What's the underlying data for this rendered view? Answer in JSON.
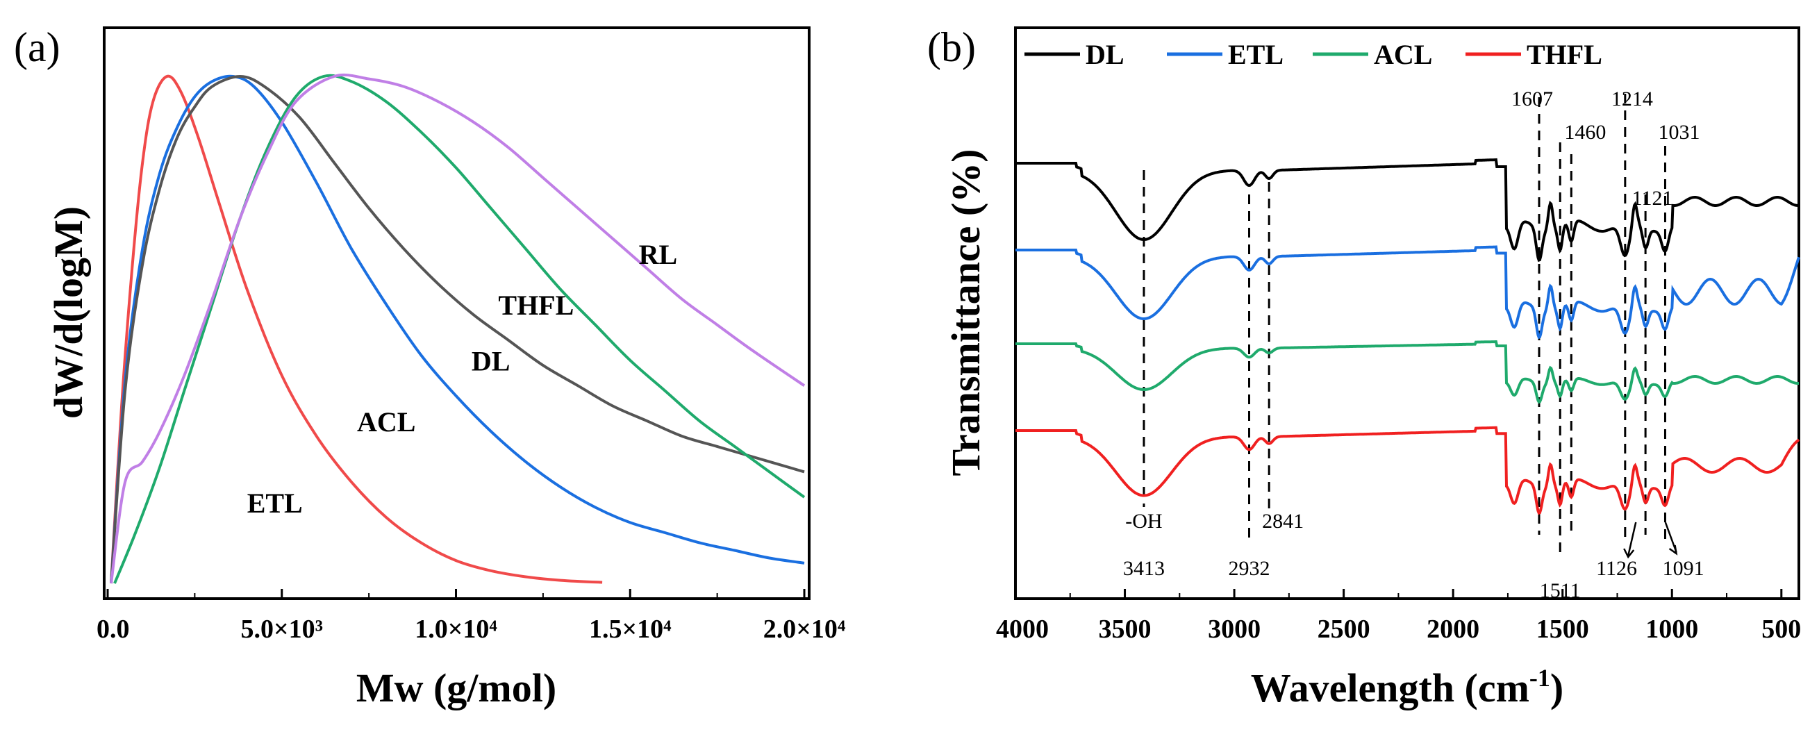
{
  "chart_data": [
    {
      "panel": "(a)",
      "type": "line",
      "xlabel": "Mw (g/mol)",
      "ylabel": "dW/d(logM)",
      "xlim": [
        0,
        20000
      ],
      "ylim": [
        0,
        1.05
      ],
      "x_ticks": [
        {
          "value": 0,
          "label": "0.0"
        },
        {
          "value": 5000,
          "label": "5.0×10³"
        },
        {
          "value": 10000,
          "label": "1.0×10⁴"
        },
        {
          "value": 15000,
          "label": "1.5×10⁴"
        },
        {
          "value": 20000,
          "label": "2.0×10⁴"
        }
      ],
      "series": [
        {
          "name": "ETL",
          "color": "#f04a4a",
          "peak_x": 1700,
          "start_x": 100,
          "end_x": 14200,
          "x": [
            100,
            400,
            700,
            1000,
            1300,
            1700,
            2100,
            2600,
            3200,
            4000,
            5000,
            6000,
            7000,
            8000,
            9000,
            10000,
            11000,
            12000,
            13000,
            14200
          ],
          "y": [
            0.0,
            0.35,
            0.62,
            0.83,
            0.95,
            1.0,
            0.97,
            0.88,
            0.75,
            0.58,
            0.41,
            0.29,
            0.2,
            0.13,
            0.08,
            0.045,
            0.025,
            0.013,
            0.006,
            0.002
          ]
        },
        {
          "name": "ACL",
          "color": "#1a6fe0",
          "peak_x": 3600,
          "start_x": 100,
          "end_x": 20000,
          "x": [
            100,
            500,
            1000,
            1500,
            2000,
            2500,
            3000,
            3600,
            4200,
            5000,
            6000,
            7000,
            8000,
            9000,
            10000,
            11000,
            12000,
            13000,
            14000,
            15000,
            16000,
            17000,
            18000,
            19000,
            20000
          ],
          "y": [
            0.0,
            0.4,
            0.66,
            0.81,
            0.9,
            0.96,
            0.99,
            1.0,
            0.98,
            0.91,
            0.79,
            0.66,
            0.55,
            0.45,
            0.37,
            0.3,
            0.24,
            0.19,
            0.15,
            0.12,
            0.1,
            0.08,
            0.065,
            0.05,
            0.04
          ]
        },
        {
          "name": "DL",
          "color": "#555555",
          "peak_x": 3800,
          "start_x": 100,
          "end_x": 20000,
          "x": [
            100,
            500,
            1000,
            1500,
            2000,
            2500,
            3000,
            3800,
            4500,
            5500,
            6500,
            7500,
            8500,
            9500,
            10500,
            11500,
            12500,
            13500,
            14500,
            15500,
            16500,
            17500,
            18500,
            20000
          ],
          "y": [
            0.0,
            0.38,
            0.63,
            0.78,
            0.88,
            0.94,
            0.98,
            1.0,
            0.98,
            0.92,
            0.83,
            0.74,
            0.66,
            0.59,
            0.53,
            0.48,
            0.43,
            0.39,
            0.35,
            0.32,
            0.29,
            0.27,
            0.25,
            0.22
          ]
        },
        {
          "name": "THFL",
          "color": "#1faa6c",
          "peak_x": 6200,
          "start_x": 200,
          "end_x": 20000,
          "x": [
            200,
            800,
            1500,
            2200,
            3000,
            3800,
            4600,
            5400,
            6200,
            7000,
            8000,
            9000,
            10000,
            11000,
            12000,
            13000,
            14000,
            15000,
            16000,
            17000,
            18000,
            19000,
            20000
          ],
          "y": [
            0.0,
            0.1,
            0.23,
            0.38,
            0.55,
            0.72,
            0.86,
            0.96,
            1.0,
            0.99,
            0.95,
            0.89,
            0.82,
            0.74,
            0.66,
            0.58,
            0.51,
            0.44,
            0.38,
            0.32,
            0.27,
            0.22,
            0.17
          ]
        },
        {
          "name": "RL",
          "color": "#c07fe6",
          "peak_x": 6500,
          "start_x": 100,
          "end_x": 20000,
          "x": [
            100,
            500,
            1000,
            1500,
            2200,
            3000,
            3800,
            4600,
            5400,
            6500,
            7500,
            8500,
            9500,
            10500,
            11500,
            12500,
            13500,
            14500,
            15500,
            16500,
            17500,
            18500,
            20000
          ],
          "y": [
            0.0,
            0.2,
            0.24,
            0.3,
            0.41,
            0.56,
            0.72,
            0.85,
            0.95,
            1.0,
            0.995,
            0.98,
            0.95,
            0.91,
            0.86,
            0.8,
            0.74,
            0.68,
            0.62,
            0.56,
            0.51,
            0.46,
            0.39
          ]
        }
      ],
      "annotations": [
        {
          "text": "ETL",
          "x": 4800,
          "y": 0.14
        },
        {
          "text": "ACL",
          "x": 8000,
          "y": 0.3
        },
        {
          "text": "DL",
          "x": 11000,
          "y": 0.42
        },
        {
          "text": "THFL",
          "x": 12300,
          "y": 0.53
        },
        {
          "text": "RL",
          "x": 15800,
          "y": 0.63
        }
      ]
    },
    {
      "panel": "(b)",
      "type": "line",
      "xlabel": "Wavelength (cm⁻¹)",
      "xlabel_main": "Wavelength (cm",
      "xlabel_sup": "-1",
      "xlabel_end": ")",
      "ylabel": "Transmittance (%)",
      "xlim": [
        4000,
        400
      ],
      "x_ticks": [
        {
          "value": 4000,
          "label": "4000"
        },
        {
          "value": 3500,
          "label": "3500"
        },
        {
          "value": 3000,
          "label": "3000"
        },
        {
          "value": 2500,
          "label": "2500"
        },
        {
          "value": 2000,
          "label": "2000"
        },
        {
          "value": 1500,
          "label": "1500"
        },
        {
          "value": 1000,
          "label": "1000"
        },
        {
          "value": 500,
          "label": "500"
        }
      ],
      "legend": [
        {
          "name": "DL",
          "color": "#000000"
        },
        {
          "name": "ETL",
          "color": "#1a6fe0"
        },
        {
          "name": "ACL",
          "color": "#1faa6c"
        },
        {
          "name": "THFL",
          "color": "#f02020"
        }
      ],
      "series": [
        {
          "name": "DL",
          "color": "#000000",
          "offset": 0.0
        },
        {
          "name": "ETL",
          "color": "#1a6fe0",
          "offset": 1.0
        },
        {
          "name": "ACL",
          "color": "#1faa6c",
          "offset": 2.0
        },
        {
          "name": "THFL",
          "color": "#f02020",
          "offset": 3.0
        }
      ],
      "dashed_lines": [
        3413,
        2932,
        2841,
        1607,
        1511,
        1460,
        1214,
        1121,
        1031
      ],
      "peak_labels": [
        {
          "text": "1607",
          "x": 1607,
          "pos": "top"
        },
        {
          "text": "1214",
          "x": 1214,
          "pos": "top"
        },
        {
          "text": "1460",
          "x": 1460,
          "pos": "upper"
        },
        {
          "text": "1031",
          "x": 1031,
          "pos": "upper"
        },
        {
          "text": "1121",
          "x": 1121,
          "pos": "mid"
        },
        {
          "text": "-OH",
          "x": 3413,
          "pos": "bottom1"
        },
        {
          "text": "3413",
          "x": 3413,
          "pos": "bottom2"
        },
        {
          "text": "2841",
          "x": 2841,
          "pos": "bottom1"
        },
        {
          "text": "2932",
          "x": 2932,
          "pos": "bottom2"
        },
        {
          "text": "1511",
          "x": 1511,
          "pos": "bottom3"
        },
        {
          "text": "1126",
          "x": 1126,
          "pos": "bottom2"
        },
        {
          "text": "1091",
          "x": 1091,
          "pos": "bottom2r"
        }
      ]
    }
  ]
}
